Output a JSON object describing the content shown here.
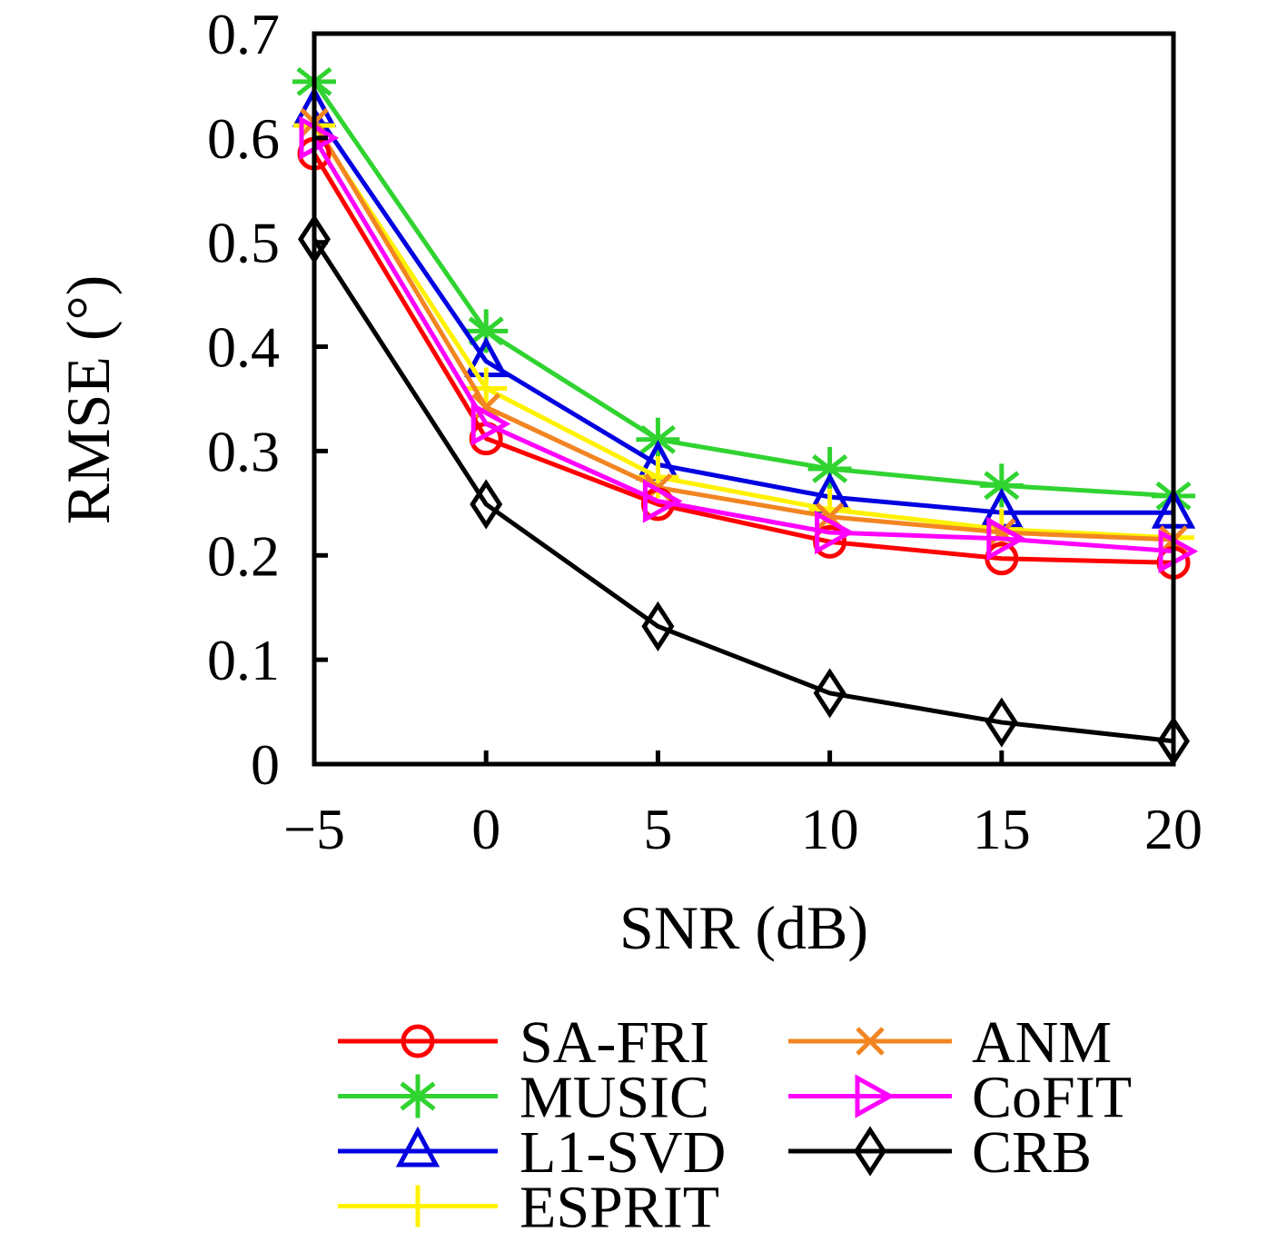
{
  "chart_data": {
    "type": "line",
    "title": "",
    "xlabel": "SNR (dB)",
    "ylabel": "RMSE (°)",
    "x": [
      -5,
      0,
      5,
      10,
      15,
      20
    ],
    "xlim": [
      -5,
      20
    ],
    "ylim": [
      0,
      0.7
    ],
    "x_tick_values": [
      -5,
      0,
      5,
      10,
      15,
      20
    ],
    "x_tick_labels": [
      "−5",
      "0",
      "5",
      "10",
      "15",
      "20"
    ],
    "y_tick_values": [
      0,
      0.1,
      0.2,
      0.3,
      0.4,
      0.5,
      0.6,
      0.7
    ],
    "y_tick_labels": [
      "0",
      "0.1",
      "0.2",
      "0.3",
      "0.4",
      "0.5",
      "0.6",
      "0.7"
    ],
    "grid": false,
    "legend_position": "below-plot",
    "series": [
      {
        "name": "SA-FRI",
        "color": "#FF0000",
        "marker": "circle",
        "values": [
          0.585,
          0.312,
          0.249,
          0.213,
          0.197,
          0.193
        ]
      },
      {
        "name": "MUSIC",
        "color": "#30D330",
        "marker": "star",
        "values": [
          0.654,
          0.415,
          0.311,
          0.283,
          0.267,
          0.257
        ]
      },
      {
        "name": "L1-SVD",
        "color": "#0000E0",
        "marker": "triangle-up",
        "values": [
          0.626,
          0.386,
          0.287,
          0.256,
          0.241,
          0.241
        ]
      },
      {
        "name": "ESPRIT",
        "color": "#FFF200",
        "marker": "plus",
        "values": [
          0.612,
          0.36,
          0.275,
          0.244,
          0.225,
          0.217
        ]
      },
      {
        "name": "ANM",
        "color": "#F28522",
        "marker": "x",
        "values": [
          0.615,
          0.342,
          0.265,
          0.237,
          0.222,
          0.215
        ]
      },
      {
        "name": "CoFIT",
        "color": "#FF00FF",
        "marker": "triangle-right",
        "values": [
          0.6,
          0.326,
          0.252,
          0.222,
          0.216,
          0.204
        ]
      },
      {
        "name": "CRB",
        "color": "#000000",
        "marker": "diamond",
        "values": [
          0.503,
          0.249,
          0.132,
          0.068,
          0.04,
          0.022
        ]
      }
    ],
    "draw_order": [
      "CRB",
      "MUSIC",
      "L1-SVD",
      "ESPRIT",
      "ANM",
      "SA-FRI",
      "CoFIT"
    ],
    "legend_columns": [
      [
        "SA-FRI",
        "MUSIC",
        "L1-SVD",
        "ESPRIT"
      ],
      [
        "ANM",
        "CoFIT",
        "CRB"
      ]
    ]
  }
}
